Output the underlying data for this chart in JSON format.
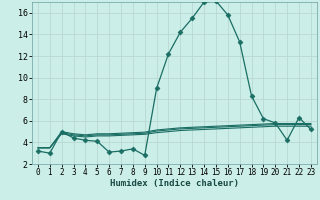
{
  "xlabel": "Humidex (Indice chaleur)",
  "bg_color": "#cceee8",
  "grid_color": "#b8d8d4",
  "line_color": "#1a6e64",
  "xlim": [
    -0.5,
    23.5
  ],
  "ylim": [
    2,
    17
  ],
  "yticks": [
    2,
    4,
    6,
    8,
    10,
    12,
    14,
    16
  ],
  "xticks": [
    0,
    1,
    2,
    3,
    4,
    5,
    6,
    7,
    8,
    9,
    10,
    11,
    12,
    13,
    14,
    15,
    16,
    17,
    18,
    19,
    20,
    21,
    22,
    23
  ],
  "series": [
    {
      "x": [
        0,
        1,
        2,
        3,
        4,
        5,
        6,
        7,
        8,
        9,
        10,
        11,
        12,
        13,
        14,
        15,
        16,
        17,
        18,
        19,
        20,
        21,
        22,
        23
      ],
      "y": [
        3.2,
        3.0,
        5.0,
        4.4,
        4.2,
        4.1,
        3.1,
        3.2,
        3.4,
        2.8,
        9.0,
        12.2,
        14.2,
        15.5,
        17.0,
        17.1,
        15.8,
        13.3,
        8.3,
        6.2,
        5.8,
        4.2,
        6.3,
        5.2
      ],
      "linewidth": 0.9,
      "markersize": 2.5,
      "marker": "D",
      "with_marker": true
    },
    {
      "x": [
        0,
        1,
        2,
        3,
        4,
        5,
        6,
        7,
        8,
        9,
        10,
        11,
        12,
        13,
        14,
        15,
        16,
        17,
        18,
        19,
        20,
        21,
        22,
        23
      ],
      "y": [
        3.5,
        3.5,
        4.8,
        4.6,
        4.5,
        4.6,
        4.6,
        4.65,
        4.7,
        4.75,
        4.9,
        5.0,
        5.1,
        5.15,
        5.2,
        5.25,
        5.3,
        5.35,
        5.4,
        5.45,
        5.5,
        5.5,
        5.5,
        5.5
      ],
      "linewidth": 0.8,
      "with_marker": false
    },
    {
      "x": [
        0,
        1,
        2,
        3,
        4,
        5,
        6,
        7,
        8,
        9,
        10,
        11,
        12,
        13,
        14,
        15,
        16,
        17,
        18,
        19,
        20,
        21,
        22,
        23
      ],
      "y": [
        3.5,
        3.5,
        4.9,
        4.7,
        4.6,
        4.7,
        4.7,
        4.75,
        4.8,
        4.85,
        5.05,
        5.15,
        5.25,
        5.3,
        5.35,
        5.4,
        5.45,
        5.5,
        5.55,
        5.6,
        5.65,
        5.65,
        5.65,
        5.65
      ],
      "linewidth": 0.8,
      "with_marker": false
    },
    {
      "x": [
        0,
        1,
        2,
        3,
        4,
        5,
        6,
        7,
        8,
        9,
        10,
        11,
        12,
        13,
        14,
        15,
        16,
        17,
        18,
        19,
        20,
        21,
        22,
        23
      ],
      "y": [
        3.5,
        3.5,
        5.0,
        4.8,
        4.7,
        4.8,
        4.8,
        4.85,
        4.9,
        4.95,
        5.15,
        5.25,
        5.35,
        5.4,
        5.45,
        5.5,
        5.55,
        5.6,
        5.65,
        5.7,
        5.75,
        5.75,
        5.75,
        5.75
      ],
      "linewidth": 0.8,
      "with_marker": false
    }
  ]
}
